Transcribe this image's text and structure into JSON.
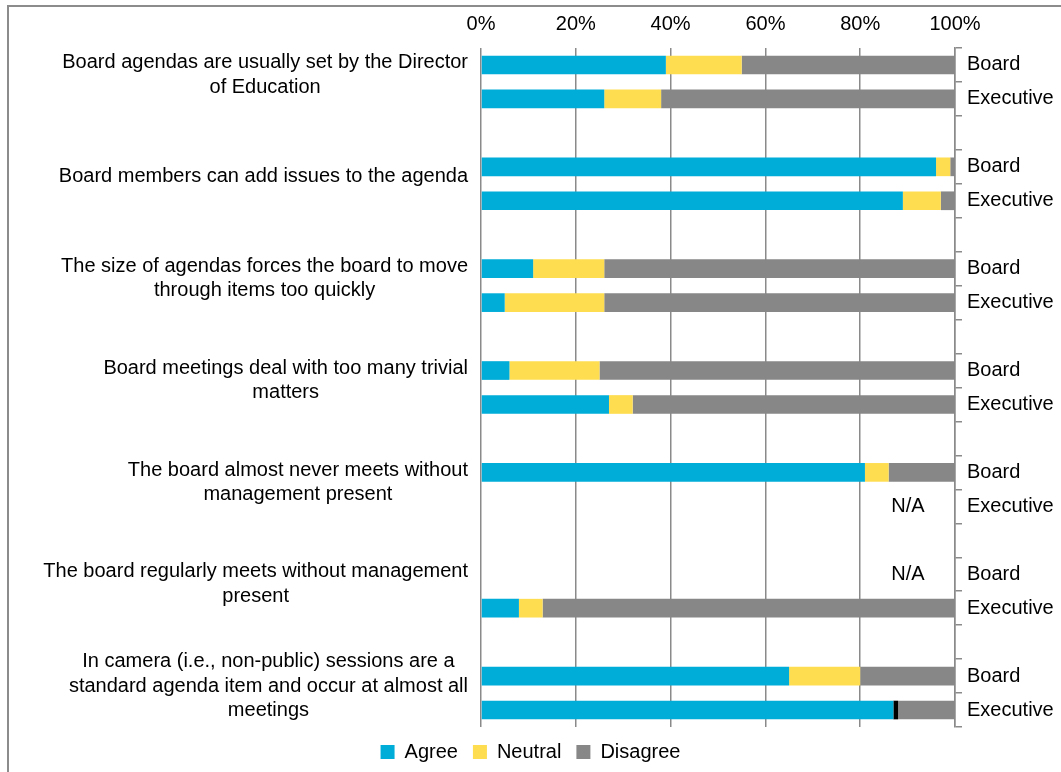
{
  "chart_data": {
    "type": "bar",
    "orientation": "horizontal",
    "stacked": true,
    "categories": [
      "Board",
      "Executive",
      null,
      "Board",
      "Executive",
      null,
      "Board",
      "Executive",
      null,
      "Board",
      "Executive",
      null,
      "Board",
      "Executive",
      null,
      "Board",
      "Executive",
      null,
      "Board",
      "Executive"
    ],
    "series": [
      {
        "name": "Agree",
        "color": "#00acd8",
        "values": [
          39,
          26,
          null,
          96,
          89,
          null,
          11,
          5,
          null,
          6,
          27,
          null,
          81,
          null,
          null,
          null,
          8,
          null,
          65,
          87
        ]
      },
      {
        "name": "Neutral",
        "color": "#fedd50",
        "colors": [
          "#fedd50",
          "#fedd50",
          "#fedd50",
          "#fedd50",
          "#fedd50",
          "#fedd50",
          "#fedd50",
          "#fedd50",
          "#fedd50",
          "#fedd50",
          "#fedd50",
          "#fedd50",
          "#fedd50",
          "#fedd50",
          "#fedd50",
          "#fedd50",
          "#fedd50",
          "#fedd50",
          "#fedd50",
          "#000000"
        ],
        "values": [
          16,
          12,
          null,
          3,
          8,
          null,
          15,
          21,
          null,
          19,
          5,
          null,
          5,
          null,
          null,
          null,
          5,
          null,
          15,
          1
        ]
      },
      {
        "name": "Disagree",
        "color": "#878787",
        "values": [
          45,
          62,
          null,
          1,
          3,
          null,
          74,
          74,
          null,
          75,
          68,
          null,
          14,
          null,
          null,
          null,
          87,
          null,
          20,
          12
        ]
      }
    ],
    "xlim": [
      0,
      100
    ],
    "xticks": [
      {
        "value": 0,
        "label": "0%"
      },
      {
        "value": 20,
        "label": "20%"
      },
      {
        "value": 40,
        "label": "40%"
      },
      {
        "value": 60,
        "label": "60%"
      },
      {
        "value": 80,
        "label": "80%"
      },
      {
        "value": 100,
        "label": "100%"
      }
    ],
    "grid": "x",
    "legend": "bottom",
    "annotations": [
      "Board agendas are usually set by the Director of Education",
      "Board members can add issues to the agenda",
      "The size of agendas forces the board to move through items too quickly",
      "Board meetings deal with too many trivial matters",
      "The board almost never meets without management present",
      "The board regularly meets without management present",
      "In camera (i.e., non-public) sessions are a standard agenda item and occur at almost all meetings",
      "N/A",
      "N/A"
    ]
  }
}
